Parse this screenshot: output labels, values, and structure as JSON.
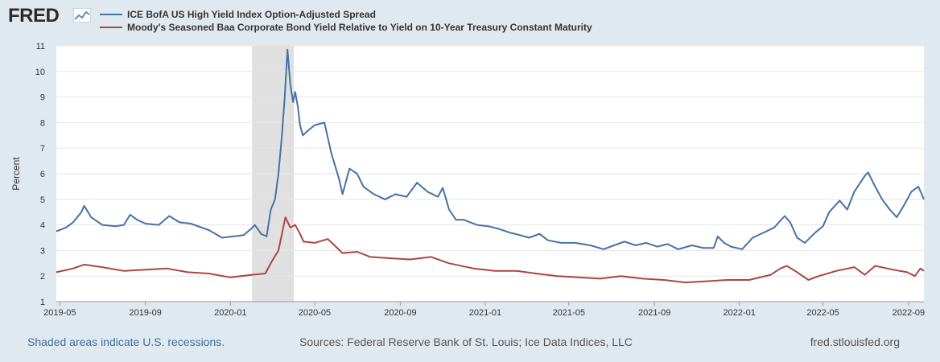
{
  "branding": {
    "logo_text": "FRED",
    "site": "fred.stlouisfed.org"
  },
  "footer": {
    "recession_note": "Shaded areas indicate U.S. recessions.",
    "sources": "Sources: Federal Reserve Bank of St. Louis; Ice Data Indices, LLC",
    "site": "fred.stlouisfed.org"
  },
  "colors": {
    "series_blue": "#4572a7",
    "series_red": "#aa4643",
    "recession": "#e0e0e0",
    "background": "#e1e9f0"
  },
  "chart_data": {
    "type": "line",
    "ylabel": "Percent",
    "ylim": [
      1,
      11
    ],
    "yticks": [
      1,
      2,
      3,
      4,
      5,
      6,
      7,
      8,
      9,
      10,
      11
    ],
    "xlim": [
      "2019-04-26",
      "2022-09-23"
    ],
    "xticks": [
      "2019-05",
      "2019-09",
      "2020-01",
      "2020-05",
      "2020-09",
      "2021-01",
      "2021-05",
      "2021-09",
      "2022-01",
      "2022-05",
      "2022-09"
    ],
    "legend_position": "top-left",
    "grid": "horizontal",
    "recessions": [
      {
        "start": "2020-02-01",
        "end": "2020-04-01"
      }
    ],
    "series": [
      {
        "name": "ICE BofA US High Yield Index Option-Adjusted Spread",
        "color": "#4572a7",
        "points": [
          [
            "2019-04-26",
            3.75
          ],
          [
            "2019-05-10",
            3.9
          ],
          [
            "2019-05-20",
            4.1
          ],
          [
            "2019-06-01",
            4.5
          ],
          [
            "2019-06-05",
            4.75
          ],
          [
            "2019-06-15",
            4.3
          ],
          [
            "2019-07-01",
            4.0
          ],
          [
            "2019-07-20",
            3.95
          ],
          [
            "2019-08-01",
            4.0
          ],
          [
            "2019-08-10",
            4.4
          ],
          [
            "2019-08-20",
            4.2
          ],
          [
            "2019-09-01",
            4.05
          ],
          [
            "2019-09-20",
            4.0
          ],
          [
            "2019-10-05",
            4.35
          ],
          [
            "2019-10-20",
            4.1
          ],
          [
            "2019-11-05",
            4.05
          ],
          [
            "2019-12-01",
            3.8
          ],
          [
            "2019-12-20",
            3.5
          ],
          [
            "2020-01-05",
            3.55
          ],
          [
            "2020-01-20",
            3.6
          ],
          [
            "2020-01-31",
            3.85
          ],
          [
            "2020-02-05",
            4.0
          ],
          [
            "2020-02-14",
            3.65
          ],
          [
            "2020-02-22",
            3.55
          ],
          [
            "2020-02-28",
            4.6
          ],
          [
            "2020-03-05",
            5.0
          ],
          [
            "2020-03-10",
            6.0
          ],
          [
            "2020-03-15",
            7.5
          ],
          [
            "2020-03-19",
            9.0
          ],
          [
            "2020-03-23",
            10.85
          ],
          [
            "2020-03-27",
            9.5
          ],
          [
            "2020-03-31",
            8.8
          ],
          [
            "2020-04-03",
            9.2
          ],
          [
            "2020-04-07",
            8.6
          ],
          [
            "2020-04-10",
            7.9
          ],
          [
            "2020-04-14",
            7.5
          ],
          [
            "2020-04-22",
            7.7
          ],
          [
            "2020-05-01",
            7.9
          ],
          [
            "2020-05-15",
            8.0
          ],
          [
            "2020-05-25",
            6.8
          ],
          [
            "2020-06-05",
            5.8
          ],
          [
            "2020-06-10",
            5.2
          ],
          [
            "2020-06-20",
            6.2
          ],
          [
            "2020-07-01",
            6.0
          ],
          [
            "2020-07-10",
            5.5
          ],
          [
            "2020-07-25",
            5.2
          ],
          [
            "2020-08-10",
            5.0
          ],
          [
            "2020-08-25",
            5.2
          ],
          [
            "2020-09-10",
            5.1
          ],
          [
            "2020-09-25",
            5.65
          ],
          [
            "2020-10-10",
            5.3
          ],
          [
            "2020-10-25",
            5.1
          ],
          [
            "2020-11-01",
            5.45
          ],
          [
            "2020-11-10",
            4.6
          ],
          [
            "2020-11-20",
            4.2
          ],
          [
            "2020-12-01",
            4.2
          ],
          [
            "2020-12-20",
            4.0
          ],
          [
            "2021-01-05",
            3.95
          ],
          [
            "2021-01-20",
            3.85
          ],
          [
            "2021-02-05",
            3.7
          ],
          [
            "2021-02-20",
            3.6
          ],
          [
            "2021-03-05",
            3.5
          ],
          [
            "2021-03-20",
            3.65
          ],
          [
            "2021-04-01",
            3.4
          ],
          [
            "2021-04-20",
            3.3
          ],
          [
            "2021-05-10",
            3.3
          ],
          [
            "2021-06-01",
            3.2
          ],
          [
            "2021-06-20",
            3.05
          ],
          [
            "2021-07-05",
            3.2
          ],
          [
            "2021-07-20",
            3.35
          ],
          [
            "2021-08-05",
            3.2
          ],
          [
            "2021-08-20",
            3.3
          ],
          [
            "2021-09-05",
            3.15
          ],
          [
            "2021-09-20",
            3.25
          ],
          [
            "2021-10-05",
            3.05
          ],
          [
            "2021-10-25",
            3.2
          ],
          [
            "2021-11-10",
            3.1
          ],
          [
            "2021-11-25",
            3.1
          ],
          [
            "2021-12-01",
            3.55
          ],
          [
            "2021-12-10",
            3.3
          ],
          [
            "2021-12-20",
            3.15
          ],
          [
            "2022-01-05",
            3.05
          ],
          [
            "2022-01-20",
            3.5
          ],
          [
            "2022-02-05",
            3.7
          ],
          [
            "2022-02-20",
            3.9
          ],
          [
            "2022-03-07",
            4.35
          ],
          [
            "2022-03-15",
            4.1
          ],
          [
            "2022-03-25",
            3.5
          ],
          [
            "2022-04-05",
            3.3
          ],
          [
            "2022-04-20",
            3.7
          ],
          [
            "2022-05-01",
            3.95
          ],
          [
            "2022-05-10",
            4.5
          ],
          [
            "2022-05-25",
            4.95
          ],
          [
            "2022-06-05",
            4.6
          ],
          [
            "2022-06-15",
            5.3
          ],
          [
            "2022-07-01",
            5.95
          ],
          [
            "2022-07-05",
            6.05
          ],
          [
            "2022-07-15",
            5.5
          ],
          [
            "2022-07-25",
            5.0
          ],
          [
            "2022-08-05",
            4.6
          ],
          [
            "2022-08-15",
            4.3
          ],
          [
            "2022-08-25",
            4.75
          ],
          [
            "2022-09-05",
            5.3
          ],
          [
            "2022-09-15",
            5.5
          ],
          [
            "2022-09-23",
            5.0
          ]
        ]
      },
      {
        "name": "Moody's Seasoned Baa Corporate Bond Yield Relative to Yield on 10-Year Treasury Constant Maturity",
        "color": "#aa4643",
        "points": [
          [
            "2019-04-26",
            2.15
          ],
          [
            "2019-05-20",
            2.3
          ],
          [
            "2019-06-05",
            2.45
          ],
          [
            "2019-07-01",
            2.35
          ],
          [
            "2019-08-01",
            2.2
          ],
          [
            "2019-09-01",
            2.25
          ],
          [
            "2019-10-01",
            2.3
          ],
          [
            "2019-11-01",
            2.15
          ],
          [
            "2019-12-01",
            2.1
          ],
          [
            "2020-01-01",
            1.95
          ],
          [
            "2020-02-01",
            2.05
          ],
          [
            "2020-02-20",
            2.1
          ],
          [
            "2020-03-01",
            2.6
          ],
          [
            "2020-03-10",
            3.0
          ],
          [
            "2020-03-20",
            4.3
          ],
          [
            "2020-03-27",
            3.9
          ],
          [
            "2020-04-03",
            4.0
          ],
          [
            "2020-04-10",
            3.65
          ],
          [
            "2020-04-15",
            3.35
          ],
          [
            "2020-05-01",
            3.3
          ],
          [
            "2020-05-20",
            3.45
          ],
          [
            "2020-06-10",
            2.9
          ],
          [
            "2020-07-01",
            2.95
          ],
          [
            "2020-07-20",
            2.75
          ],
          [
            "2020-08-15",
            2.7
          ],
          [
            "2020-09-15",
            2.65
          ],
          [
            "2020-10-15",
            2.75
          ],
          [
            "2020-11-10",
            2.5
          ],
          [
            "2020-12-15",
            2.3
          ],
          [
            "2021-01-15",
            2.2
          ],
          [
            "2021-02-15",
            2.2
          ],
          [
            "2021-03-15",
            2.1
          ],
          [
            "2021-04-15",
            2.0
          ],
          [
            "2021-05-15",
            1.95
          ],
          [
            "2021-06-15",
            1.9
          ],
          [
            "2021-07-15",
            2.0
          ],
          [
            "2021-08-15",
            1.9
          ],
          [
            "2021-09-15",
            1.85
          ],
          [
            "2021-10-15",
            1.75
          ],
          [
            "2021-11-15",
            1.8
          ],
          [
            "2021-12-15",
            1.85
          ],
          [
            "2022-01-15",
            1.85
          ],
          [
            "2022-02-15",
            2.05
          ],
          [
            "2022-03-01",
            2.3
          ],
          [
            "2022-03-10",
            2.4
          ],
          [
            "2022-03-25",
            2.15
          ],
          [
            "2022-04-10",
            1.85
          ],
          [
            "2022-04-25",
            2.0
          ],
          [
            "2022-05-20",
            2.2
          ],
          [
            "2022-06-15",
            2.35
          ],
          [
            "2022-06-30",
            2.05
          ],
          [
            "2022-07-15",
            2.4
          ],
          [
            "2022-08-10",
            2.25
          ],
          [
            "2022-08-30",
            2.15
          ],
          [
            "2022-09-10",
            2.0
          ],
          [
            "2022-09-18",
            2.3
          ],
          [
            "2022-09-23",
            2.2
          ]
        ]
      }
    ]
  }
}
